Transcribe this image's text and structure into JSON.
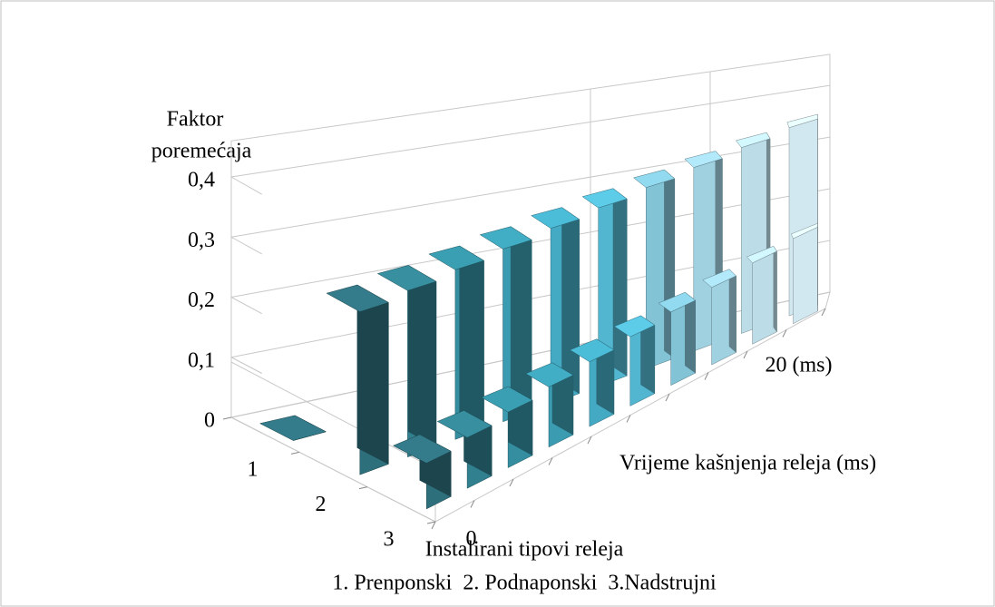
{
  "chart_data": {
    "type": "bar3d",
    "y_label": [
      "Faktor",
      "poremećaja"
    ],
    "x_label": "Vrijeme kašnjenja releja (ms)",
    "depth_label": "Instalirani tipovi releja",
    "depth_subtitle": "1. Prenponski  2. Podnaponski  3.Nadstrujni",
    "categories": [
      "0",
      null,
      null,
      null,
      null,
      null,
      null,
      null,
      null,
      "20 (ms)"
    ],
    "colors": [
      "#2e6f7c",
      "#31808f",
      "#348ea0",
      "#3b9bb0",
      "#44a9c2",
      "#52b6d0",
      "#82c3d6",
      "#a0d1e0",
      "#bcdde8",
      "#d2e8f0"
    ],
    "series": [
      {
        "name": "1",
        "values": [
          0,
          null,
          null,
          null,
          null,
          null,
          null,
          null,
          null,
          null
        ]
      },
      {
        "name": "2",
        "values": [
          0.28,
          0.29,
          0.3,
          0.31,
          0.32,
          0.33,
          0.34,
          0.35,
          0.36,
          0.37
        ]
      },
      {
        "name": "3",
        "values": [
          0.08,
          0.09,
          0.1,
          0.11,
          0.12,
          0.13,
          0.14,
          0.15,
          0.16,
          0.17
        ]
      }
    ],
    "ylim": [
      0,
      0.4
    ],
    "yticks": [
      0,
      {
        "value": 0.1,
        "label": "0,1"
      },
      {
        "value": 0.2,
        "label": "0,2"
      },
      {
        "value": 0.3,
        "label": "0,3"
      },
      {
        "value": 0.4,
        "label": "0,4"
      }
    ],
    "grid": true
  }
}
